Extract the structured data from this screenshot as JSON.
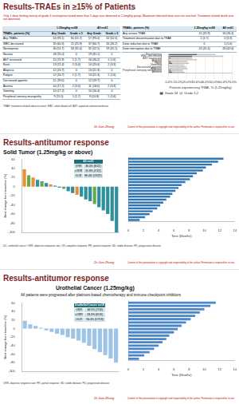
{
  "slides": [
    {
      "title": "Results-TRAEs in ≥15% of Patients",
      "subtitle": "Only 1 dose limiting toxicity of grade 4 neutropenia lasted more than 5 days was observed at 1.5mg/kg group. Maximum tolerated dose was not reached. Treatment related death was not observed.",
      "tables": [
        {
          "header_groups": [
            "1.25mg/kg n=58",
            "All n=61"
          ],
          "header": [
            "TRAEs, patients (%)",
            "Any Grade",
            "Grade ≥ 3",
            "Any Grade",
            "Grade ≥ 3"
          ],
          "rows": [
            [
              "Any TRAEs",
              "54 (93.1)",
              "30 (51.7)",
              "57 (93.4)",
              "32 (52.5)"
            ],
            [
              "WBC decreased",
              "35 (60.3)",
              "15 (25.9)",
              "37 (60.7)",
              "16 (26.2)"
            ],
            [
              "Neutropenia",
              "30 (51.7)",
              "18 (31.0)",
              "32 (52.5)",
              "19 (31.1)"
            ],
            [
              "Nausea",
              "18 (31.0)",
              "0",
              "19 (31.1)",
              "0"
            ],
            [
              "AST increased",
              "15 (25.9)",
              "1 (1.7)",
              "16 (26.2)",
              "1 (1.6)"
            ],
            [
              "Rash",
              "13 (22.4)",
              "2 (3.4)",
              "14 (23.0)",
              "2 (3.3)"
            ],
            [
              "Alopecia",
              "12 (20.7)",
              "0",
              "13 (21.3)",
              "0"
            ],
            [
              "Fatigue",
              "12 (20.7)",
              "1 (1.7)",
              "13 (21.3)",
              "1 (1.6)"
            ],
            [
              "Decreased appetite",
              "11 (19.0)",
              "0",
              "12 (19.7)",
              "0"
            ],
            [
              "Anemia",
              "10 (17.2)",
              "2 (3.4)",
              "11 (18.0)",
              "2 (3.3)"
            ],
            [
              "Vomiting",
              "10 (17.2)",
              "0",
              "10 (16.4)",
              "0"
            ],
            [
              "Peripheral sensory neuropathy",
              "9 (15.5)",
              "1 (1.7)",
              "9 (14.8)",
              "1 (1.6)"
            ]
          ]
        },
        {
          "header": [
            "TRAEs, patients (%)",
            "1.25mg/kg n=58",
            "All n=61"
          ],
          "rows": [
            [
              "Any serious TRAE",
              "15 (25.9)",
              "16 (26.2)"
            ],
            [
              "Treatment discontinuation due to TRAE",
              "1 (1.7)",
              "2 (3.3)"
            ],
            [
              "Dose reduction due to TRAE",
              "0",
              "1 (1.6)"
            ],
            [
              "Dose interruption due to TRAE",
              "24 (41.4)",
              "26 (42.6)"
            ]
          ]
        }
      ],
      "footnote": "TRAE: treatment-related adverse event; WBC: white blood cell; AST: aspartate aminotransferase",
      "author": "Dr Jian Zhang",
      "copyright": "Content of this presentation is copyright and responsibility of the author. Permission is required for re-use."
    },
    {
      "title": "Results-antitumor response",
      "subtitle": "Solid Tumor (1.25mg/kg or above)",
      "inset": {
        "header": "All n=22",
        "rows": [
          [
            "ORR",
            "36.4% (8/22)"
          ],
          [
            "cORR",
            "31.8% (7/22)"
          ],
          [
            "DCR",
            "86.4% (19/22)"
          ]
        ]
      },
      "footnote": "UC, urothelial cancer; ORR, objective response rate; CR, complete response; PR, partial response; SD, stable disease; PD, progression disease",
      "author": "Dr Jian Zhang",
      "copyright": "Content of this presentation is copyright and responsibility of the author. Permission is required for re-use."
    },
    {
      "title": "Results-antitumor response",
      "subtitle": "Urothelial Cancer (1.25mg/kg)",
      "note": "All patients were progressed after platinum-based chemotherapy and immune checkpoint inhibitors",
      "inset": {
        "header": "Urothelial Cancer n=18",
        "rows": [
          [
            "ORR",
            "38.9% (7/18)"
          ],
          [
            "cORR",
            "33.3% (6/18)"
          ],
          [
            "DCR",
            "94.4% (17/18)"
          ]
        ]
      },
      "footnote": "ORR, objective response rate; PR, partial response; SD, stable disease; PD, progression disease",
      "author": "Dr Jian Zhang",
      "copyright": "Content of this presentation is copyright and responsibility of the author. Permission is required for re-use."
    }
  ],
  "chart_data": [
    {
      "type": "bar",
      "orientation": "horizontal",
      "stacked": true,
      "grid": true,
      "legend": "bottom",
      "xlabel": "Patients experiencing TRAE, % (1.25mg/kg)",
      "categories": [
        "Neutropenia",
        "WBC decreased",
        "AST increased",
        "Nausea",
        "Fatigue",
        "Rash",
        "Vomiting",
        "Decreased appetite",
        "Alopecia",
        "Peripheral sensory neuropathy",
        "Anemia"
      ],
      "series": [
        {
          "name": "Grade ≥3",
          "color": "#595959",
          "values": [
            31.0,
            25.9,
            1.7,
            0,
            1.7,
            3.4,
            0,
            0,
            0,
            1.7,
            3.4
          ]
        },
        {
          "name": "Grade 1-2",
          "color": "#bfbfbf",
          "values": [
            20.7,
            34.4,
            24.1,
            31.0,
            19.0,
            19.0,
            17.2,
            19.0,
            20.7,
            13.8,
            13.8
          ]
        }
      ],
      "xlim": [
        0,
        70
      ],
      "xticks": [
        {
          "value": 0,
          "label": "0.0%"
        },
        {
          "value": 10,
          "label": "10.0%"
        },
        {
          "value": 20,
          "label": "20.0%"
        },
        {
          "value": 30,
          "label": "30.0%"
        },
        {
          "value": 40,
          "label": "40.0%"
        },
        {
          "value": 50,
          "label": "50.0%"
        },
        {
          "value": 60,
          "label": "60.0%"
        },
        {
          "value": 70,
          "label": "70.0%"
        }
      ]
    },
    {
      "type": "bar",
      "grid": false,
      "tick_labels": "y",
      "ylabel": "Best change from baseline (%)",
      "values": [
        38,
        25,
        20,
        15,
        12,
        8,
        5,
        2,
        -2,
        -5,
        -10,
        -14,
        -18,
        -22,
        -28,
        -32,
        -38,
        -45,
        -52,
        -60,
        -75,
        -100
      ],
      "colors": [
        "#e69138",
        "#6aa84f",
        "#e69138",
        "#2f8f9d",
        "#6aa84f",
        "#2f8f9d",
        "#e69138",
        "#2f8f9d",
        "#2f8f9d",
        "#6aa84f",
        "#2f8f9d",
        "#2f8f9d",
        "#e69138",
        "#2f8f9d",
        "#2f8f9d",
        "#2f8f9d",
        "#6aa84f",
        "#2f8f9d",
        "#2f8f9d",
        "#2f8f9d",
        "#2f8f9d",
        "#2f8f9d"
      ],
      "ylim": [
        -100,
        60
      ],
      "yticks": [
        -100,
        -80,
        -60,
        -40,
        -20,
        0,
        20,
        40,
        60
      ]
    },
    {
      "type": "bar",
      "orientation": "horizontal",
      "grid": false,
      "tick_labels": "x",
      "xlabel": "Time (Months)",
      "values": [
        12.5,
        11.8,
        11,
        10.2,
        9.8,
        9,
        8.5,
        8.1,
        7.5,
        7,
        6.6,
        6.2,
        5.8,
        5.5,
        5,
        4.6,
        4.2,
        3.8,
        3.2,
        2.8,
        2.2,
        1.5
      ],
      "color": "#2e75b6",
      "xlim": [
        0,
        14
      ],
      "xticks": [
        0,
        2,
        4,
        6,
        8,
        10,
        12,
        14
      ]
    },
    {
      "type": "bar",
      "grid": false,
      "tick_labels": "y",
      "ylabel": "Best change from baseline (%)",
      "values": [
        18,
        10,
        6,
        2,
        -4,
        -8,
        -12,
        -15,
        -20,
        -24,
        -28,
        -33,
        -40,
        -48,
        -55,
        -62,
        -70,
        -80
      ],
      "color": "#9dc3e6",
      "ylim": [
        -100,
        60
      ],
      "yticks": [
        -100,
        -80,
        -60,
        -40,
        -20,
        0,
        20,
        40,
        60
      ]
    },
    {
      "type": "bar",
      "orientation": "horizontal",
      "grid": false,
      "tick_labels": "x",
      "xlabel": "Time (Months)",
      "values": [
        11.5,
        10.8,
        10,
        9.4,
        8.8,
        8.2,
        7.6,
        7,
        6.5,
        6,
        5.4,
        5,
        4.5,
        4,
        3.4,
        2.8,
        2.1,
        1.4
      ],
      "color": "#4a86c8",
      "xlim": [
        0,
        14
      ],
      "xticks": [
        0,
        2,
        4,
        6,
        8,
        10,
        12,
        14
      ]
    }
  ]
}
